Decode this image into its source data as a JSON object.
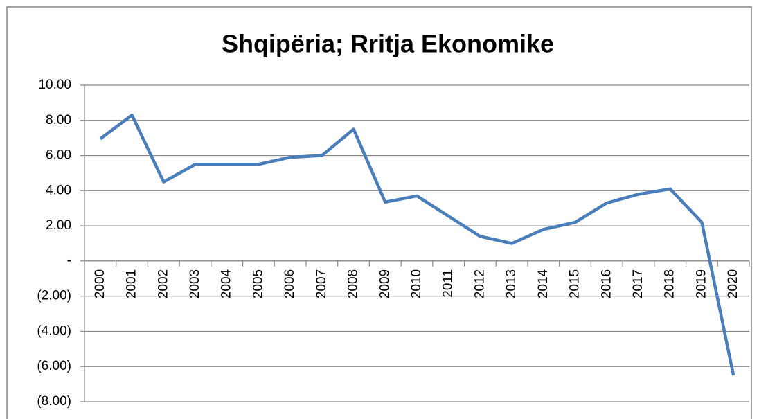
{
  "chart_data": {
    "type": "line",
    "title": "Shqipëria; Rritja Ekonomike",
    "categories": [
      "2000",
      "2001",
      "2002",
      "2003",
      "2004",
      "2005",
      "2006",
      "2007",
      "2008",
      "2009",
      "2010",
      "2011",
      "2012",
      "2013",
      "2014",
      "2015",
      "2016",
      "2017",
      "2018",
      "2019",
      "2020"
    ],
    "series": [
      {
        "color": "#4a7ebb",
        "values": [
          6.95,
          8.3,
          4.5,
          5.5,
          5.5,
          5.5,
          5.9,
          6.0,
          7.5,
          3.35,
          3.7,
          2.55,
          1.4,
          1.0,
          1.8,
          2.2,
          3.3,
          3.8,
          4.1,
          2.2,
          -6.5
        ]
      }
    ],
    "ylim": [
      -8,
      10
    ],
    "yticks": [
      {
        "value": -8,
        "label": "(8.00)"
      },
      {
        "value": -6,
        "label": "(6.00)"
      },
      {
        "value": -4,
        "label": "(4.00)"
      },
      {
        "value": -2,
        "label": "(2.00)"
      },
      {
        "value": 0,
        "label": "-"
      },
      {
        "value": 2,
        "label": "2.00"
      },
      {
        "value": 4,
        "label": "4.00"
      },
      {
        "value": 6,
        "label": "6.00"
      },
      {
        "value": 8,
        "label": "8.00"
      },
      {
        "value": 10,
        "label": "10.00"
      }
    ],
    "grid": true
  }
}
